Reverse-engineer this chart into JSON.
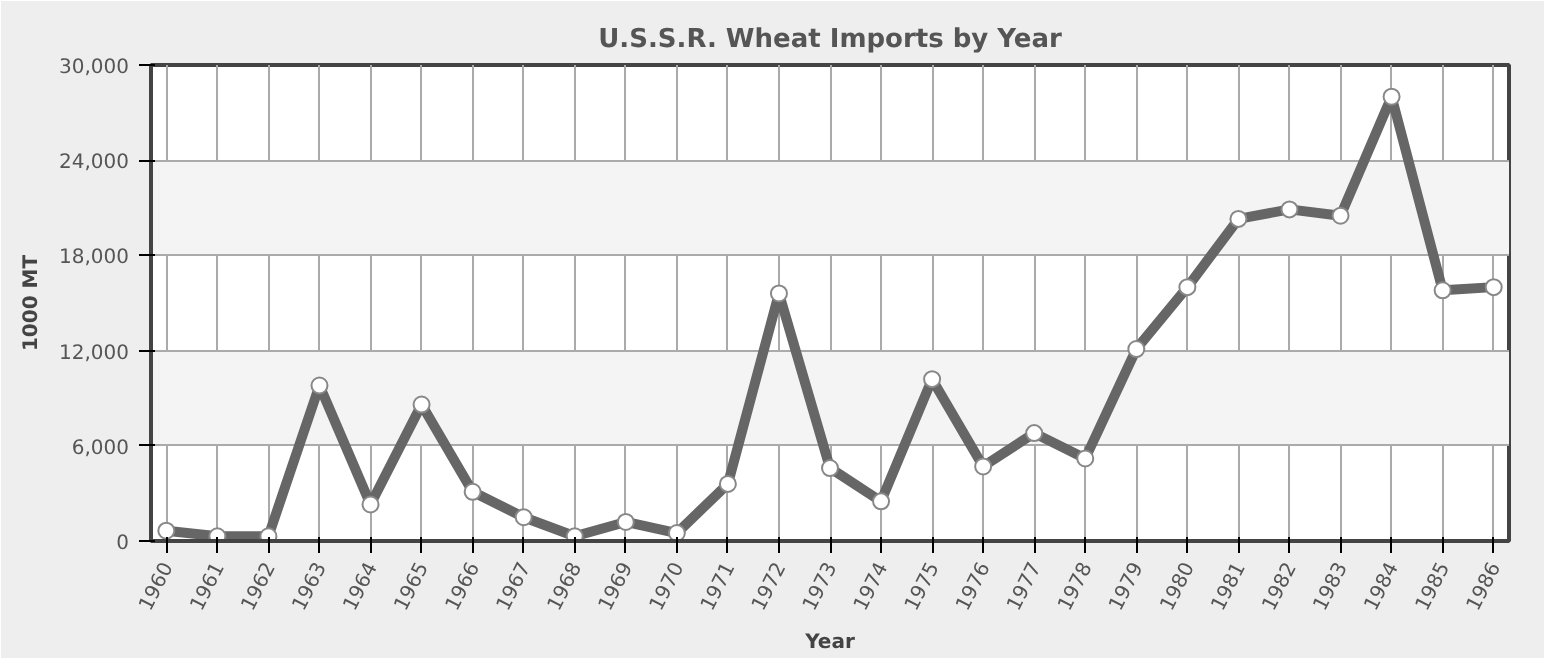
{
  "chart_data": {
    "type": "line",
    "title": "U.S.S.R. Wheat Imports by Year",
    "xlabel": "Year",
    "ylabel": "1000 MT",
    "categories": [
      "1960",
      "1961",
      "1962",
      "1963",
      "1964",
      "1965",
      "1966",
      "1967",
      "1968",
      "1969",
      "1970",
      "1971",
      "1972",
      "1973",
      "1974",
      "1975",
      "1976",
      "1977",
      "1978",
      "1979",
      "1980",
      "1981",
      "1982",
      "1983",
      "1984",
      "1985",
      "1986"
    ],
    "series": [
      {
        "color": "#666666",
        "values": [
          650,
          300,
          300,
          9800,
          2300,
          8600,
          3100,
          1500,
          300,
          1200,
          500,
          3600,
          15600,
          4600,
          2500,
          10200,
          4700,
          6800,
          5200,
          12100,
          16000,
          20300,
          20900,
          20500,
          28000,
          15800,
          16000
        ]
      }
    ],
    "ylim": [
      0,
      30000
    ],
    "yticks": [
      {
        "value": 0,
        "label": "0"
      },
      {
        "value": 6000,
        "label": "6,000"
      },
      {
        "value": 12000,
        "label": "12,000"
      },
      {
        "value": 18000,
        "label": "18,000"
      },
      {
        "value": 24000,
        "label": "24,000"
      },
      {
        "value": 30000,
        "label": "30,000"
      }
    ],
    "grid": true,
    "marker": "circle",
    "line_style": "solid"
  }
}
